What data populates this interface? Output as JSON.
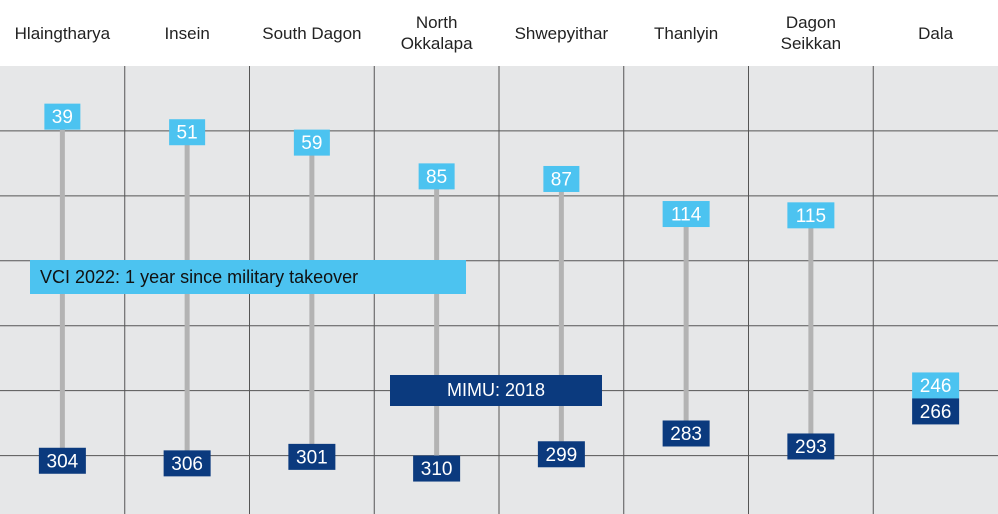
{
  "chart_data": {
    "type": "dumbbell",
    "categories": [
      "Hlaingtharya",
      "Insein",
      "South Dagon",
      "North\nOkkalapa",
      "Shwepyithar",
      "Thanlyin",
      "Dagon\nSeikkan",
      "Dala"
    ],
    "series": [
      {
        "name": "VCI 2022: 1 year since military takeover",
        "color": "#4cc3f0",
        "values": [
          39,
          51,
          59,
          85,
          87,
          114,
          115,
          246
        ]
      },
      {
        "name": "MIMU: 2018",
        "color": "#0b3a7e",
        "values": [
          304,
          306,
          301,
          310,
          299,
          283,
          293,
          266
        ]
      }
    ],
    "ylim": [
      0,
      345
    ],
    "yticks": [
      50,
      100,
      150,
      200,
      250,
      300
    ],
    "inverted": true,
    "grid": true
  }
}
